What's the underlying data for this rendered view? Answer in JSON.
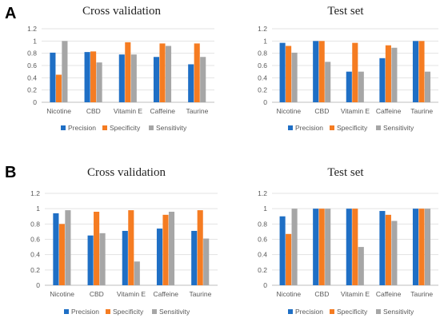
{
  "panels": [
    {
      "label": "A"
    },
    {
      "label": "B"
    }
  ],
  "colors": {
    "Precision": "#1f6fc5",
    "Specificity": "#f57c22",
    "Sensitivity": "#a6a6a6"
  },
  "chart_data": [
    {
      "panel": "A",
      "type": "bar",
      "title": "Cross validation",
      "categories": [
        "Nicotine",
        "CBD",
        "Vitamin E",
        "Caffeine",
        "Taurine"
      ],
      "ylim": [
        0,
        1.2
      ],
      "yticks": [
        "0",
        "0.2",
        "0.4",
        "0.6",
        "0.8",
        "1",
        "1.2"
      ],
      "grid": true,
      "legend_position": "bottom",
      "series": [
        {
          "name": "Precision",
          "values": [
            0.81,
            0.82,
            0.78,
            0.74,
            0.62
          ]
        },
        {
          "name": "Specificity",
          "values": [
            0.45,
            0.83,
            0.98,
            0.96,
            0.96
          ]
        },
        {
          "name": "Sensitivity",
          "values": [
            1.0,
            0.65,
            0.78,
            0.92,
            0.74
          ]
        }
      ]
    },
    {
      "panel": "A",
      "type": "bar",
      "title": "Test set",
      "categories": [
        "Nicotine",
        "CBD",
        "Vitamin E",
        "Caffeine",
        "Taurine"
      ],
      "ylim": [
        0,
        1.2
      ],
      "yticks": [
        "0",
        "0.2",
        "0.4",
        "0.6",
        "0.8",
        "1",
        "1.2"
      ],
      "grid": true,
      "legend_position": "bottom",
      "series": [
        {
          "name": "Precision",
          "values": [
            0.97,
            1.0,
            0.5,
            0.72,
            1.0
          ]
        },
        {
          "name": "Specificity",
          "values": [
            0.92,
            1.0,
            0.97,
            0.93,
            1.0
          ]
        },
        {
          "name": "Sensitivity",
          "values": [
            0.81,
            0.66,
            0.5,
            0.89,
            0.5
          ]
        }
      ]
    },
    {
      "panel": "B",
      "type": "bar",
      "title": "Cross validation",
      "categories": [
        "Nicotine",
        "CBD",
        "Vitamin E",
        "Caffeine",
        "Taurine"
      ],
      "ylim": [
        0,
        1.2
      ],
      "yticks": [
        "0",
        "0.2",
        "0.4",
        "0.6",
        "0.8",
        "1",
        "1.2"
      ],
      "grid": true,
      "legend_position": "bottom",
      "series": [
        {
          "name": "Precision",
          "values": [
            0.94,
            0.65,
            0.71,
            0.74,
            0.71
          ]
        },
        {
          "name": "Specificity",
          "values": [
            0.8,
            0.96,
            0.98,
            0.92,
            0.98
          ]
        },
        {
          "name": "Sensitivity",
          "values": [
            0.98,
            0.68,
            0.31,
            0.96,
            0.61
          ]
        }
      ]
    },
    {
      "panel": "B",
      "type": "bar",
      "title": "Test set",
      "categories": [
        "Nicotine",
        "CBD",
        "Vitamin E",
        "Caffeine",
        "Taurine"
      ],
      "ylim": [
        0,
        1.2
      ],
      "yticks": [
        "0",
        "0.2",
        "0.4",
        "0.6",
        "0.8",
        "1",
        "1.2"
      ],
      "grid": true,
      "legend_position": "bottom",
      "series": [
        {
          "name": "Precision",
          "values": [
            0.9,
            1.0,
            1.0,
            0.97,
            1.0
          ]
        },
        {
          "name": "Specificity",
          "values": [
            0.67,
            1.0,
            1.0,
            0.92,
            1.0
          ]
        },
        {
          "name": "Sensitivity",
          "values": [
            1.0,
            1.0,
            0.5,
            0.84,
            1.0
          ]
        }
      ]
    }
  ]
}
